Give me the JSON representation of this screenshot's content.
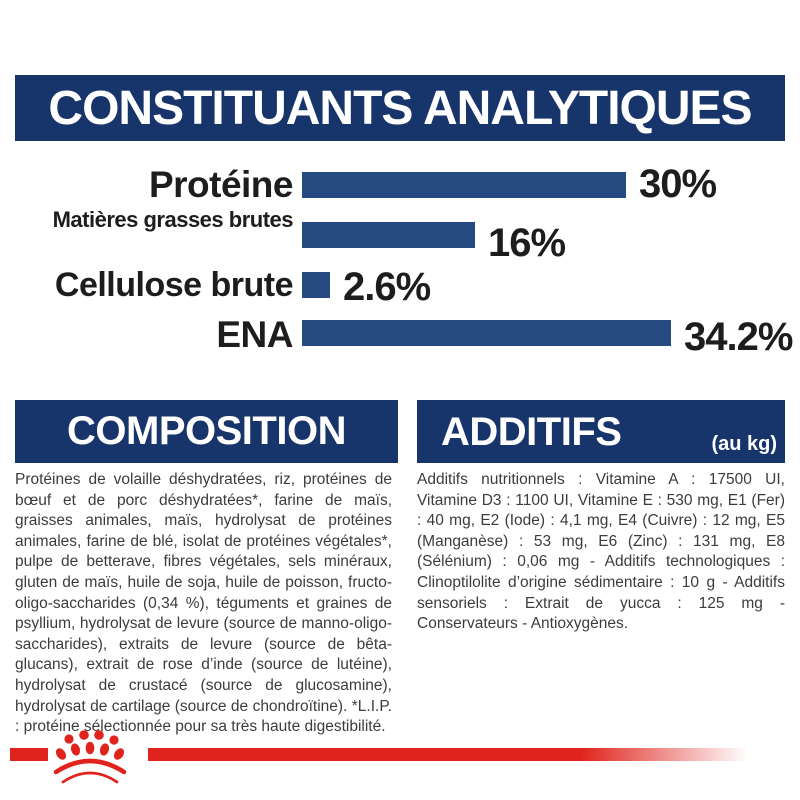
{
  "header": {
    "title": "CONSTITUANTS ANALYTIQUES"
  },
  "chart_data": {
    "type": "bar",
    "orientation": "horizontal",
    "title": "CONSTITUANTS ANALYTIQUES",
    "categories": [
      "Protéine",
      "Matières grasses brutes",
      "Cellulose brute",
      "ENA"
    ],
    "values": [
      30,
      16,
      2.6,
      34.2
    ],
    "value_labels": [
      "30%",
      "16%",
      "2.6%",
      "34.2%"
    ],
    "unit": "%",
    "xlim": [
      0,
      36
    ],
    "grid": false,
    "legend": false,
    "bar_color": "#254a81",
    "label_color": "#1d1d1b"
  },
  "sections": {
    "composition": {
      "title": "COMPOSITION",
      "body": "Protéines de volaille déshydratées, riz, protéines de bœuf et de porc déshydratées*, farine de maïs, graisses animales, maïs, hydrolysat de protéines animales, farine de blé, isolat de protéines végétales*, pulpe de betterave, fibres végétales, sels minéraux, gluten de maïs, huile de soja, huile de poisson, fructo-oligo-saccharides (0,34 %), téguments et graines de psyllium, hydrolysat de levure (source de manno-oligo-saccharides), extraits de levure (source de bêta-glucans), extrait de rose d’inde (source de lutéine), hydrolysat de crustacé (source de glucosamine), hydrolysat de cartilage (source de chondroïtine). *L.I.P. : protéine sélectionnée pour sa très haute digestibilité."
    },
    "additifs": {
      "title": "ADDITIFS",
      "subtitle": "(au kg)",
      "body": "Additifs nutritionnels : Vitamine A : 17500 UI, Vitamine D3 : 1100 UI, Vitamine E : 530 mg, E1 (Fer) : 40 mg, E2 (Iode) : 4,1 mg, E4 (Cuivre) : 12 mg, E5 (Manganèse) : 53 mg, E6 (Zinc) : 131 mg, E8 (Sélénium) : 0,06 mg - Additifs technologiques : Clinoptilolite d’origine sédimentaire : 10 g - Additifs sensoriels : Extrait de yucca : 125 mg - Conservateurs - Antioxygènes."
    }
  },
  "branding": {
    "logo": "royal-canin-crown",
    "accent_red": "#e0231c",
    "navy": "#17356b"
  }
}
